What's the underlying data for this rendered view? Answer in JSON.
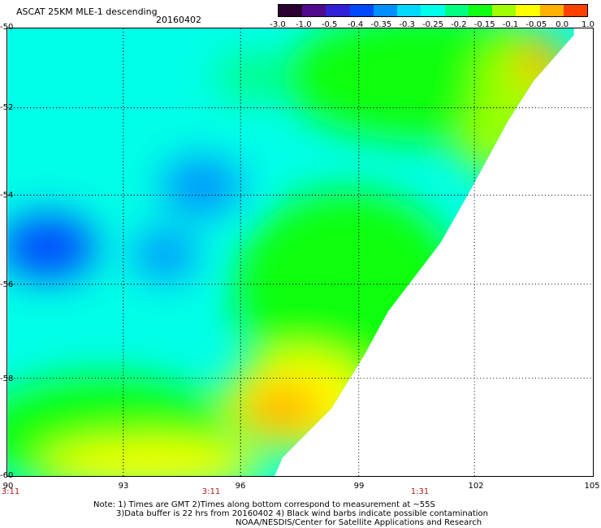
{
  "header": {
    "title": "ASCAT 25KM MLE-1 descending",
    "date": "20160402"
  },
  "colorbar": {
    "labels": [
      "-3.0",
      "-1.0",
      "-0.5",
      "-0.4",
      "-0.35",
      "-0.3",
      "-0.25",
      "-0.2",
      "-0.15",
      "-0.1",
      "-0.05",
      "0.0",
      "1.0"
    ],
    "colors": [
      "#2a0030",
      "#500a8c",
      "#3020d8",
      "#0048ff",
      "#0090ff",
      "#00d8ff",
      "#00ffe8",
      "#00ff80",
      "#10ff10",
      "#a0ff00",
      "#ffff00",
      "#ffb000",
      "#ff4000"
    ]
  },
  "axes": {
    "lat_labels": [
      "-50",
      "-52",
      "-54",
      "-56",
      "-58",
      "-60"
    ],
    "lon_labels": [
      "90",
      "93",
      "96",
      "99",
      "102",
      "105"
    ],
    "time_labels": [
      "3:11",
      "3:11",
      "1:31"
    ],
    "lat_range": [
      -60,
      -50
    ],
    "lon_range": [
      90,
      105
    ]
  },
  "notes": {
    "line1": "Note: 1) Times are GMT 2)Times along bottom correspond to measurement at ~55S",
    "line2": "3)Data buffer is 22 hrs from 20160402 4) Black wind barbs indicate possible contamination",
    "line3": "NOAA/NESDIS/Center for Satellite Applications and Research"
  }
}
